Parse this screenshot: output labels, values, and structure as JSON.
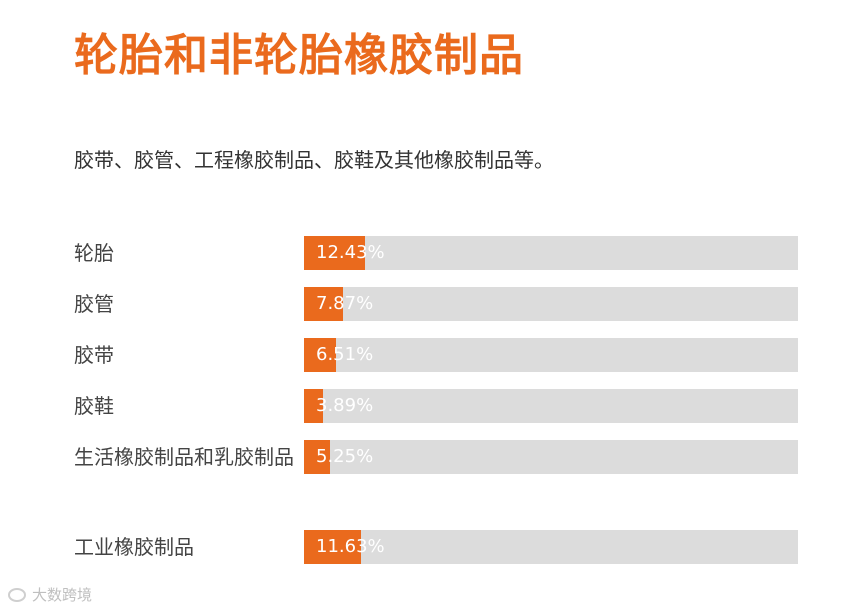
{
  "header": {
    "title": "轮胎和非轮胎橡胶制品",
    "subtitle": "胶带、胶管、工程橡胶制品、胶鞋及其他橡胶制品等。"
  },
  "chart_data": {
    "type": "bar",
    "orientation": "horizontal",
    "categories": [
      "轮胎",
      "胶管",
      "胶带",
      "胶鞋",
      "生活橡胶制品和乳胶制品",
      "工业橡胶制品"
    ],
    "values": [
      12.43,
      7.87,
      6.51,
      3.89,
      5.25,
      11.63
    ],
    "value_labels": [
      "12.43%",
      "7.87%",
      "6.51%",
      "3.89%",
      "5.25%",
      "11.63%"
    ],
    "xlim": [
      0,
      100
    ],
    "colors": {
      "fill": "#ea6a1d",
      "track": "#dcdcdc"
    }
  },
  "watermark": {
    "text": "大数跨境"
  }
}
